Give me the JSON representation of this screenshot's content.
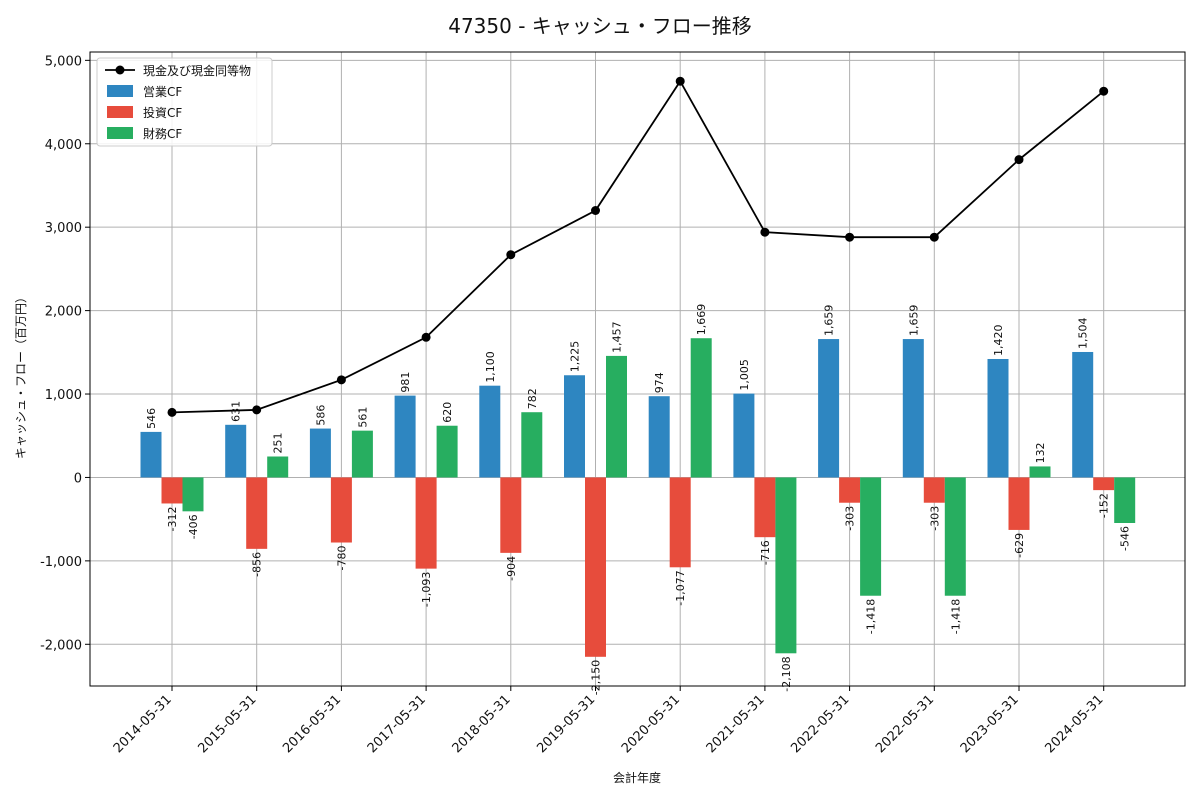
{
  "chart_data": {
    "type": "bar",
    "title": "47350 - キャッシュ・フロー推移",
    "xlabel": "会計年度",
    "ylabel": "キャッシュ・フロー（百万円）",
    "ylim": [
      -2500,
      5100
    ],
    "yticks": [
      -2000,
      -1000,
      0,
      1000,
      2000,
      3000,
      4000,
      5000
    ],
    "ytick_labels": [
      "-2,000",
      "-1,000",
      "0",
      "1,000",
      "2,000",
      "3,000",
      "4,000",
      "5,000"
    ],
    "grid": true,
    "legend_position": "top-left",
    "categories": [
      "2014-05-31",
      "2015-05-31",
      "2016-05-31",
      "2017-05-31",
      "2018-05-31",
      "2019-05-31",
      "2020-05-31",
      "2021-05-31",
      "2022-05-31",
      "2022-05-31",
      "2023-05-31",
      "2024-05-31"
    ],
    "series": [
      {
        "name": "営業CF",
        "kind": "bar",
        "color": "#2e86c1",
        "values": [
          546,
          631,
          586,
          981,
          1100,
          1225,
          974,
          1005,
          1659,
          1659,
          1420,
          1504
        ],
        "labels": [
          "546",
          "631",
          "586",
          "981",
          "1,100",
          "1,225",
          "974",
          "1,005",
          "1,659",
          "1,659",
          "1,420",
          "1,504"
        ]
      },
      {
        "name": "投資CF",
        "kind": "bar",
        "color": "#e74c3c",
        "values": [
          -312,
          -856,
          -780,
          -1093,
          -904,
          -2150,
          -1077,
          -716,
          -303,
          -303,
          -629,
          -152
        ],
        "labels": [
          "-312",
          "-856",
          "-780",
          "-1,093",
          "-904",
          "-2,150",
          "-1,077",
          "-716",
          "-303",
          "-303",
          "-629",
          "-152"
        ]
      },
      {
        "name": "財務CF",
        "kind": "bar",
        "color": "#27ae60",
        "values": [
          -406,
          251,
          561,
          620,
          782,
          1457,
          1669,
          -2108,
          -1418,
          -1418,
          132,
          -546
        ],
        "labels": [
          "-406",
          "251",
          "561",
          "620",
          "782",
          "1,457",
          "1,669",
          "-2,108",
          "-1,418",
          "-1,418",
          "132",
          "-546"
        ]
      },
      {
        "name": "現金及び現金同等物",
        "kind": "line",
        "color": "#000000",
        "values": [
          780,
          810,
          1170,
          1680,
          2670,
          3200,
          4750,
          2940,
          2880,
          2880,
          3810,
          4630
        ]
      }
    ]
  }
}
